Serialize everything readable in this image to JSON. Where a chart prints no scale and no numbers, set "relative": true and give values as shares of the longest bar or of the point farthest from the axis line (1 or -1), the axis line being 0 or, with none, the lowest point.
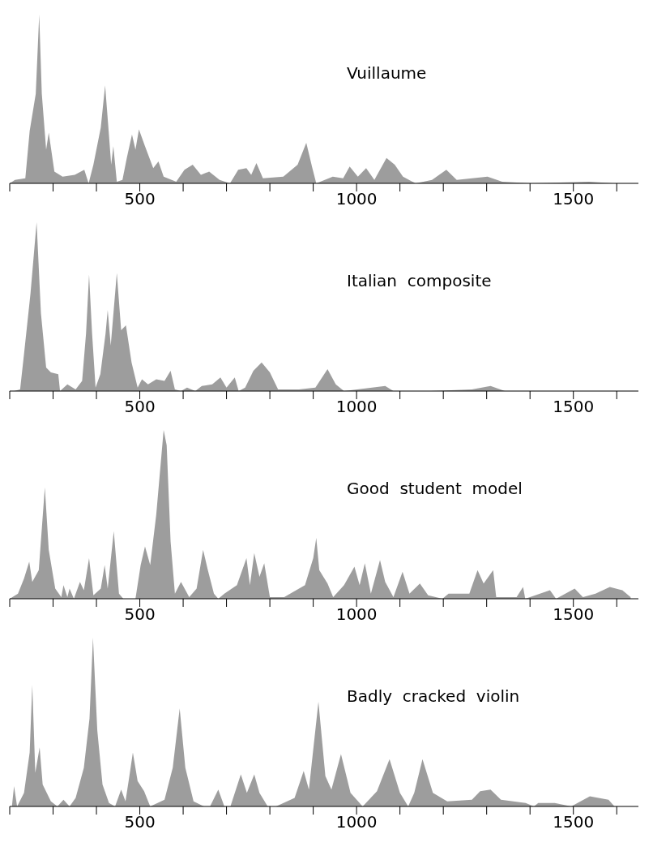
{
  "chart_data": [
    {
      "type": "area",
      "relative": true,
      "title": "Vuillaume",
      "color": "#8c8c8c",
      "xlim": [
        200,
        1650
      ],
      "xticks": [
        {
          "value": 200,
          "label": null
        },
        {
          "value": 300,
          "label": null
        },
        {
          "value": 400,
          "label": null
        },
        500,
        {
          "value": 600,
          "label": null
        },
        {
          "value": 700,
          "label": null
        },
        {
          "value": 800,
          "label": null
        },
        {
          "value": 900,
          "label": null
        },
        1000,
        {
          "value": 1100,
          "label": null
        },
        {
          "value": 1200,
          "label": null
        },
        {
          "value": 1300,
          "label": null
        },
        {
          "value": 1400,
          "label": null
        },
        1500,
        {
          "value": 1600,
          "label": null
        }
      ],
      "x": [
        200,
        212,
        236,
        246,
        260,
        268,
        274,
        284,
        290,
        303,
        322,
        350,
        372,
        382,
        393,
        410,
        420,
        427,
        434,
        439,
        447,
        460,
        470,
        482,
        490,
        498,
        512,
        531,
        543,
        555,
        584,
        603,
        622,
        641,
        660,
        684,
        708,
        727,
        746,
        757,
        769,
        784,
        831,
        864,
        884,
        898,
        907,
        945,
        969,
        984,
        1003,
        1022,
        1041,
        1069,
        1088,
        1107,
        1136,
        1174,
        1207,
        1231,
        1302,
        1336,
        1403,
        1536,
        1593,
        1650
      ],
      "values": [
        0,
        0.02,
        0.03,
        0.31,
        0.53,
        1,
        0.53,
        0.2,
        0.3,
        0.07,
        0.04,
        0.05,
        0.08,
        0,
        0.11,
        0.33,
        0.58,
        0.35,
        0.11,
        0.22,
        0.01,
        0.02,
        0.15,
        0.29,
        0.2,
        0.32,
        0.22,
        0.09,
        0.13,
        0.04,
        0.01,
        0.08,
        0.11,
        0.05,
        0.07,
        0.02,
        0,
        0.08,
        0.09,
        0.05,
        0.12,
        0.03,
        0.04,
        0.11,
        0.24,
        0.09,
        0,
        0.04,
        0.03,
        0.1,
        0.04,
        0.09,
        0.02,
        0.15,
        0.11,
        0.04,
        0,
        0.02,
        0.08,
        0.02,
        0.04,
        0.01,
        0,
        0.01,
        0,
        0
      ]
    },
    {
      "type": "area",
      "relative": true,
      "title": "Italian  composite",
      "color": "#8c8c8c",
      "xlim": [
        200,
        1650
      ],
      "xticks": [
        {
          "value": 200,
          "label": null
        },
        {
          "value": 300,
          "label": null
        },
        {
          "value": 400,
          "label": null
        },
        500,
        {
          "value": 600,
          "label": null
        },
        {
          "value": 700,
          "label": null
        },
        {
          "value": 800,
          "label": null
        },
        {
          "value": 900,
          "label": null
        },
        1000,
        {
          "value": 1100,
          "label": null
        },
        {
          "value": 1200,
          "label": null
        },
        {
          "value": 1300,
          "label": null
        },
        {
          "value": 1400,
          "label": null
        },
        1500,
        {
          "value": 1600,
          "label": null
        }
      ],
      "x": [
        210,
        224,
        233,
        248,
        262,
        272,
        284,
        295,
        312,
        316,
        333,
        352,
        367,
        376,
        383,
        390,
        398,
        409,
        421,
        426,
        433,
        447,
        457,
        468,
        481,
        495,
        505,
        519,
        538,
        557,
        571,
        581,
        595,
        609,
        628,
        643,
        667,
        686,
        700,
        719,
        728,
        743,
        762,
        781,
        800,
        819,
        867,
        905,
        933,
        952,
        971,
        1066,
        1085,
        1171,
        1266,
        1309,
        1342,
        1504,
        1638
      ],
      "values": [
        0,
        0.01,
        0.22,
        0.58,
        1,
        0.46,
        0.14,
        0.11,
        0.1,
        0,
        0.04,
        0.01,
        0.06,
        0.34,
        0.69,
        0.34,
        0.02,
        0.1,
        0.34,
        0.48,
        0.27,
        0.7,
        0.36,
        0.39,
        0.17,
        0.02,
        0.07,
        0.04,
        0.07,
        0.06,
        0.12,
        0.01,
        0,
        0.02,
        0,
        0.03,
        0.04,
        0.08,
        0.02,
        0.08,
        0,
        0.02,
        0.12,
        0.17,
        0.11,
        0.01,
        0.01,
        0.02,
        0.13,
        0.04,
        0,
        0.03,
        0,
        0,
        0.01,
        0.03,
        0,
        0,
        0
      ]
    },
    {
      "type": "area",
      "relative": true,
      "title": "Good  student  model",
      "color": "#8c8c8c",
      "xlim": [
        200,
        1650
      ],
      "xticks": [
        {
          "value": 200,
          "label": null
        },
        {
          "value": 300,
          "label": null
        },
        {
          "value": 400,
          "label": null
        },
        500,
        {
          "value": 600,
          "label": null
        },
        {
          "value": 700,
          "label": null
        },
        {
          "value": 800,
          "label": null
        },
        {
          "value": 900,
          "label": null
        },
        1000,
        {
          "value": 1100,
          "label": null
        },
        {
          "value": 1200,
          "label": null
        },
        {
          "value": 1300,
          "label": null
        },
        {
          "value": 1400,
          "label": null
        },
        1500,
        {
          "value": 1600,
          "label": null
        }
      ],
      "x": [
        200,
        219,
        233,
        245,
        252,
        267,
        281,
        290,
        305,
        319,
        324,
        333,
        338,
        348,
        362,
        371,
        383,
        393,
        410,
        419,
        426,
        440,
        452,
        462,
        490,
        502,
        512,
        524,
        538,
        555,
        562,
        571,
        581,
        595,
        614,
        631,
        646,
        657,
        671,
        681,
        695,
        724,
        746,
        754,
        764,
        776,
        787,
        800,
        833,
        881,
        900,
        907,
        914,
        933,
        946,
        971,
        995,
        1007,
        1019,
        1033,
        1054,
        1066,
        1085,
        1106,
        1122,
        1146,
        1165,
        1198,
        1212,
        1260,
        1279,
        1293,
        1315,
        1322,
        1369,
        1384,
        1389,
        1446,
        1460,
        1503,
        1522,
        1551,
        1584,
        1613,
        1632
      ],
      "values": [
        0,
        0.03,
        0.12,
        0.22,
        0.1,
        0.17,
        0.66,
        0.29,
        0.06,
        0.01,
        0.08,
        0.01,
        0.06,
        0,
        0.1,
        0.05,
        0.24,
        0.02,
        0.06,
        0.2,
        0.06,
        0.4,
        0.03,
        0,
        0,
        0.2,
        0.31,
        0.2,
        0.5,
        1,
        0.91,
        0.34,
        0.03,
        0.1,
        0.01,
        0.06,
        0.29,
        0.17,
        0.03,
        0,
        0.03,
        0.08,
        0.24,
        0.08,
        0.27,
        0.13,
        0.21,
        0.01,
        0.01,
        0.08,
        0.24,
        0.36,
        0.17,
        0.09,
        0.01,
        0.08,
        0.19,
        0.08,
        0.21,
        0.03,
        0.23,
        0.1,
        0.01,
        0.16,
        0.03,
        0.09,
        0.02,
        0,
        0.03,
        0.03,
        0.17,
        0.09,
        0.17,
        0.01,
        0.01,
        0.07,
        0,
        0.05,
        0,
        0.06,
        0.01,
        0.03,
        0.07,
        0.05,
        0.01
      ]
    },
    {
      "type": "area",
      "relative": true,
      "title": "Badly  cracked  violin",
      "color": "#8c8c8c",
      "xlim": [
        200,
        1650
      ],
      "xticks": [
        {
          "value": 200,
          "label": null
        },
        {
          "value": 300,
          "label": null
        },
        {
          "value": 400,
          "label": null
        },
        500,
        {
          "value": 600,
          "label": null
        },
        {
          "value": 700,
          "label": null
        },
        {
          "value": 800,
          "label": null
        },
        {
          "value": 900,
          "label": null
        },
        1000,
        {
          "value": 1100,
          "label": null
        },
        {
          "value": 1200,
          "label": null
        },
        {
          "value": 1300,
          "label": null
        },
        {
          "value": 1400,
          "label": null
        },
        1500,
        {
          "value": 1600,
          "label": null
        }
      ],
      "x": [
        205,
        210,
        217,
        233,
        246,
        252,
        259,
        269,
        276,
        295,
        310,
        324,
        338,
        352,
        371,
        384,
        392,
        402,
        414,
        429,
        443,
        457,
        467,
        476,
        484,
        495,
        510,
        524,
        557,
        576,
        592,
        605,
        624,
        648,
        662,
        681,
        695,
        709,
        733,
        747,
        764,
        776,
        795,
        814,
        857,
        878,
        890,
        912,
        928,
        942,
        964,
        986,
        1014,
        1047,
        1076,
        1100,
        1119,
        1133,
        1152,
        1176,
        1209,
        1266,
        1285,
        1309,
        1333,
        1390,
        1409,
        1419,
        1457,
        1495,
        1538,
        1581,
        1595
      ],
      "values": [
        0,
        0.12,
        0,
        0.08,
        0.32,
        0.72,
        0.2,
        0.35,
        0.13,
        0.03,
        0,
        0.04,
        0,
        0.05,
        0.23,
        0.52,
        1,
        0.45,
        0.13,
        0.02,
        0,
        0.1,
        0.03,
        0.18,
        0.32,
        0.15,
        0.09,
        0,
        0.04,
        0.23,
        0.58,
        0.23,
        0.03,
        0,
        0,
        0.1,
        0,
        0,
        0.19,
        0.08,
        0.19,
        0.08,
        0,
        0,
        0.05,
        0.21,
        0.1,
        0.62,
        0.18,
        0.1,
        0.31,
        0.08,
        0,
        0.09,
        0.28,
        0.08,
        0,
        0.08,
        0.28,
        0.08,
        0.03,
        0.04,
        0.09,
        0.1,
        0.04,
        0.02,
        0,
        0.02,
        0.02,
        0,
        0.06,
        0.04,
        0
      ]
    }
  ]
}
